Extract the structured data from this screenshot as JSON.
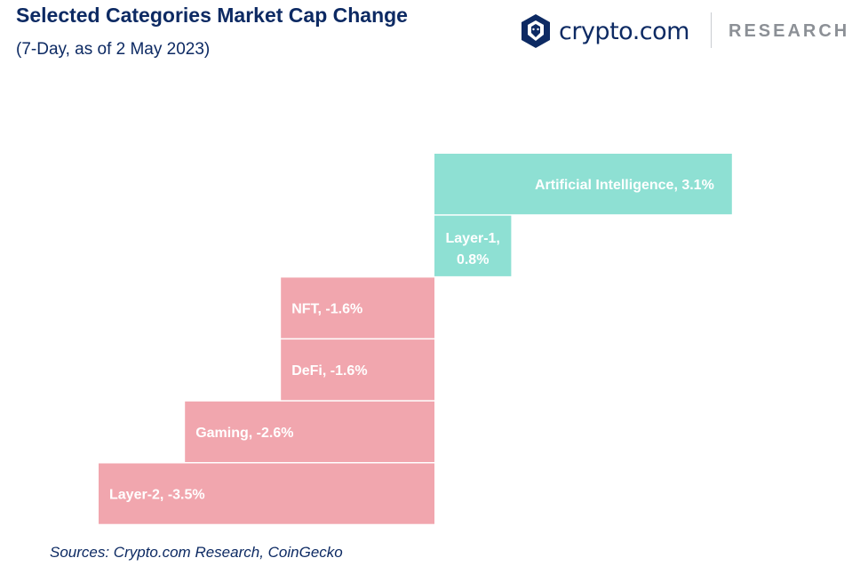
{
  "title": "Selected Categories Market Cap Change",
  "subtitle": "(7-Day, as of 2 May 2023)",
  "brand": {
    "name": "crypto.com",
    "division": "RESEARCH",
    "icon": "crypto-com-lion-shield-icon",
    "color": "#0d2a63"
  },
  "source": "Sources: Crypto.com Research, CoinGecko",
  "colors": {
    "positive": "#8ee0d3",
    "negative": "#f1a6ae"
  },
  "chart_data": {
    "type": "bar",
    "orientation": "horizontal",
    "title": "Selected Categories Market Cap Change",
    "subtitle": "(7-Day, as of 2 May 2023)",
    "unit": "%",
    "categories": [
      "Artificial Intelligence",
      "Layer-1",
      "NFT",
      "DeFi",
      "Gaming",
      "Layer-2"
    ],
    "values": [
      3.1,
      0.8,
      -1.6,
      -1.6,
      -2.6,
      -3.5
    ],
    "labels": [
      [
        "Artificial Intelligence, 3.1%"
      ],
      [
        "Layer-1,",
        "0.8%"
      ],
      [
        "NFT, -1.6%"
      ],
      [
        "DeFi, -1.6%"
      ],
      [
        "Gaming, -2.6%"
      ],
      [
        "Layer-2, -3.5%"
      ]
    ],
    "grid": false,
    "legend": "none"
  }
}
